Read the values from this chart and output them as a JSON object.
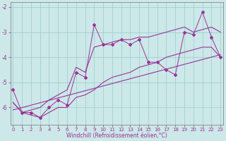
{
  "x_data": [
    0,
    1,
    2,
    3,
    4,
    5,
    6,
    7,
    8,
    9,
    10,
    11,
    12,
    13,
    14,
    15,
    16,
    17,
    18,
    19,
    20,
    21,
    22,
    23
  ],
  "main_line": [
    -5.3,
    -6.2,
    -6.2,
    -6.4,
    -6.0,
    -5.7,
    -5.9,
    -4.6,
    -4.8,
    -2.7,
    -3.5,
    -3.5,
    -3.3,
    -3.5,
    -3.3,
    -4.2,
    -4.2,
    -4.5,
    -4.7,
    -3.0,
    -3.1,
    -2.2,
    -3.2,
    -4.0
  ],
  "upper_line": [
    -5.8,
    -6.2,
    -6.1,
    -6.0,
    -5.7,
    -5.5,
    -5.3,
    -4.4,
    -4.6,
    -3.6,
    -3.5,
    -3.4,
    -3.3,
    -3.3,
    -3.2,
    -3.2,
    -3.1,
    -3.0,
    -2.9,
    -2.8,
    -3.0,
    -2.9,
    -2.8,
    -3.0
  ],
  "lower_line": [
    -5.8,
    -6.2,
    -6.3,
    -6.4,
    -6.2,
    -6.0,
    -6.0,
    -5.6,
    -5.5,
    -5.3,
    -5.0,
    -4.8,
    -4.7,
    -4.6,
    -4.4,
    -4.3,
    -4.2,
    -4.0,
    -3.9,
    -3.8,
    -3.7,
    -3.6,
    -3.6,
    -4.0
  ],
  "regression_line_x": [
    0,
    23
  ],
  "regression_line_y": [
    -6.1,
    -3.9
  ],
  "color": "#993399",
  "background_color": "#cce8e8",
  "grid_color": "#99cccc",
  "xlim": [
    0,
    23
  ],
  "ylim": [
    -6.7,
    -1.8
  ],
  "yticks": [
    -6,
    -5,
    -4,
    -3,
    -2
  ],
  "xlabel": "Windchill (Refroidissement éolien,°C)",
  "xticks": [
    0,
    1,
    2,
    3,
    4,
    5,
    6,
    7,
    8,
    9,
    10,
    11,
    12,
    13,
    14,
    15,
    16,
    17,
    18,
    19,
    20,
    21,
    22,
    23
  ],
  "tick_fontsize": 5.0,
  "label_fontsize": 5.5
}
